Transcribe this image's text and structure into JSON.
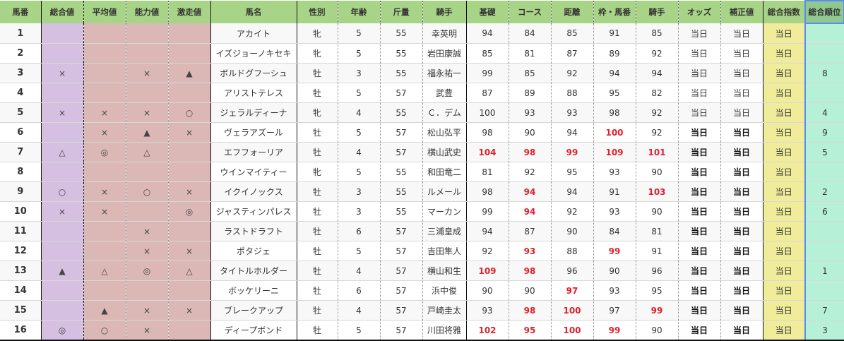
{
  "headers": [
    "馬番",
    "総合値",
    "平均値",
    "能力値",
    "激走値",
    "馬名",
    "性別",
    "年齢",
    "斤量",
    "騎手",
    "基礎",
    "コース",
    "距離",
    "枠・馬番",
    "騎手",
    "オッズ",
    "補正値",
    "総合指数",
    "総合順位"
  ],
  "colors": {
    "header": "#a8d487",
    "purple": "#d5c0e2",
    "pink": "#dbb8b6",
    "yellow": "#f0ec9a",
    "mint": "#b6f0d6",
    "highlight": "#e0202c",
    "rank_border": "#5a8cf0"
  },
  "rows": [
    {
      "no": "1",
      "marks": [
        "",
        "",
        "",
        ""
      ],
      "name": "アカイト",
      "sex": "牝",
      "age": "5",
      "weight": "55",
      "jockey": "幸英明",
      "stats": [
        "94",
        "84",
        "85",
        "91",
        "85"
      ],
      "red": [],
      "odds": "当日",
      "adj": "当日",
      "index": "当日",
      "rank": ""
    },
    {
      "no": "2",
      "marks": [
        "",
        "",
        "",
        ""
      ],
      "name": "イズジョーノキセキ",
      "sex": "牝",
      "age": "5",
      "weight": "55",
      "jockey": "岩田康誠",
      "stats": [
        "85",
        "81",
        "87",
        "89",
        "92"
      ],
      "red": [],
      "odds": "当日",
      "adj": "当日",
      "index": "当日",
      "rank": ""
    },
    {
      "no": "3",
      "marks": [
        "×",
        "",
        "×",
        "▲"
      ],
      "name": "ボルドグフーシュ",
      "sex": "牡",
      "age": "3",
      "weight": "55",
      "jockey": "福永祐一",
      "stats": [
        "99",
        "85",
        "92",
        "94",
        "94"
      ],
      "red": [],
      "odds": "当日",
      "adj": "当日",
      "index": "当日",
      "rank": "8"
    },
    {
      "no": "4",
      "marks": [
        "",
        "",
        "",
        ""
      ],
      "name": "アリストテレス",
      "sex": "牡",
      "age": "5",
      "weight": "57",
      "jockey": "武豊",
      "stats": [
        "87",
        "89",
        "88",
        "95",
        "82"
      ],
      "red": [],
      "odds": "当日",
      "adj": "当日",
      "index": "当日",
      "rank": ""
    },
    {
      "no": "5",
      "marks": [
        "×",
        "×",
        "×",
        "○"
      ],
      "name": "ジェラルディーナ",
      "sex": "牝",
      "age": "4",
      "weight": "55",
      "jockey": "Ｃ．デム",
      "stats": [
        "100",
        "93",
        "93",
        "98",
        "92"
      ],
      "red": [],
      "odds": "当日",
      "adj": "当日",
      "index": "当日",
      "rank": "4"
    },
    {
      "no": "6",
      "marks": [
        "",
        "×",
        "▲",
        "×"
      ],
      "name": "ヴェラアズール",
      "sex": "牡",
      "age": "5",
      "weight": "57",
      "jockey": "松山弘平",
      "stats": [
        "98",
        "90",
        "94",
        "100",
        "92"
      ],
      "red": [
        3
      ],
      "odds": "当日",
      "adj": "当日",
      "index": "当日",
      "rank": "9"
    },
    {
      "no": "7",
      "marks": [
        "△",
        "◎",
        "△",
        ""
      ],
      "name": "エフフォーリア",
      "sex": "牡",
      "age": "4",
      "weight": "57",
      "jockey": "横山武史",
      "stats": [
        "104",
        "98",
        "99",
        "109",
        "101"
      ],
      "red": [
        0,
        1,
        2,
        3,
        4
      ],
      "odds": "当日",
      "adj": "当日",
      "index": "当日",
      "rank": "5"
    },
    {
      "no": "8",
      "marks": [
        "",
        "",
        "",
        ""
      ],
      "name": "ウインマイティー",
      "sex": "牝",
      "age": "5",
      "weight": "55",
      "jockey": "和田竜二",
      "stats": [
        "81",
        "92",
        "95",
        "93",
        "90"
      ],
      "red": [],
      "odds": "当日",
      "adj": "当日",
      "index": "当日",
      "rank": ""
    },
    {
      "no": "9",
      "marks": [
        "○",
        "×",
        "○",
        "×"
      ],
      "name": "イクイノックス",
      "sex": "牡",
      "age": "3",
      "weight": "55",
      "jockey": "ルメール",
      "stats": [
        "98",
        "94",
        "94",
        "91",
        "103"
      ],
      "red": [
        1,
        4
      ],
      "odds": "当日",
      "adj": "当日",
      "index": "当日",
      "rank": "2"
    },
    {
      "no": "10",
      "marks": [
        "×",
        "×",
        "",
        "◎"
      ],
      "name": "ジャスティンパレス",
      "sex": "牡",
      "age": "3",
      "weight": "55",
      "jockey": "マーカン",
      "stats": [
        "99",
        "94",
        "92",
        "93",
        "90"
      ],
      "red": [
        1
      ],
      "odds": "当日",
      "adj": "当日",
      "index": "当日",
      "rank": "6"
    },
    {
      "no": "11",
      "marks": [
        "",
        "",
        "×",
        ""
      ],
      "name": "ラストドラフト",
      "sex": "牡",
      "age": "6",
      "weight": "57",
      "jockey": "三浦皇成",
      "stats": [
        "94",
        "87",
        "90",
        "84",
        "81"
      ],
      "red": [],
      "odds": "当日",
      "adj": "当日",
      "index": "当日",
      "rank": ""
    },
    {
      "no": "12",
      "marks": [
        "",
        "",
        "×",
        "×"
      ],
      "name": "ポタジェ",
      "sex": "牡",
      "age": "5",
      "weight": "57",
      "jockey": "吉田隼人",
      "stats": [
        "92",
        "93",
        "88",
        "99",
        "91"
      ],
      "red": [
        1,
        3
      ],
      "odds": "当日",
      "adj": "当日",
      "index": "当日",
      "rank": ""
    },
    {
      "no": "13",
      "marks": [
        "▲",
        "△",
        "◎",
        "△"
      ],
      "name": "タイトルホルダー",
      "sex": "牡",
      "age": "4",
      "weight": "57",
      "jockey": "横山和生",
      "stats": [
        "109",
        "98",
        "96",
        "90",
        "96"
      ],
      "red": [
        0,
        1
      ],
      "odds": "当日",
      "adj": "当日",
      "index": "当日",
      "rank": "1"
    },
    {
      "no": "14",
      "marks": [
        "",
        "",
        "",
        ""
      ],
      "name": "ボッケリーニ",
      "sex": "牡",
      "age": "6",
      "weight": "57",
      "jockey": "浜中俊",
      "stats": [
        "90",
        "90",
        "97",
        "93",
        "95"
      ],
      "red": [
        2
      ],
      "odds": "当日",
      "adj": "当日",
      "index": "当日",
      "rank": ""
    },
    {
      "no": "15",
      "marks": [
        "",
        "▲",
        "×",
        "×"
      ],
      "name": "ブレークアップ",
      "sex": "牡",
      "age": "4",
      "weight": "57",
      "jockey": "戸崎圭太",
      "stats": [
        "93",
        "98",
        "100",
        "97",
        "99"
      ],
      "red": [
        1,
        2,
        4
      ],
      "odds": "当日",
      "adj": "当日",
      "index": "当日",
      "rank": "7"
    },
    {
      "no": "16",
      "marks": [
        "◎",
        "○",
        "×",
        ""
      ],
      "name": "ディープボンド",
      "sex": "牡",
      "age": "5",
      "weight": "57",
      "jockey": "川田将雅",
      "stats": [
        "102",
        "95",
        "100",
        "99",
        "90"
      ],
      "red": [
        0,
        1,
        2,
        3
      ],
      "odds": "当日",
      "adj": "当日",
      "index": "当日",
      "rank": "3"
    }
  ]
}
